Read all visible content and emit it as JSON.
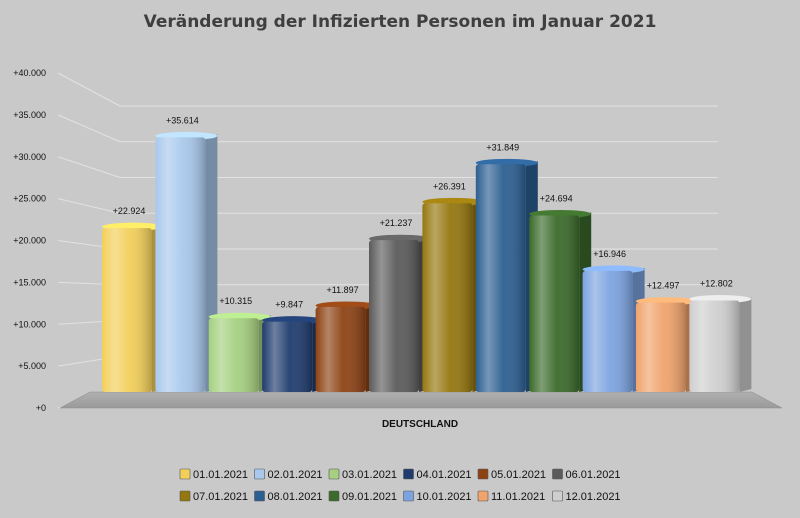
{
  "chart_data": {
    "type": "bar",
    "title": "Veränderung der Infizierten Personen im Januar 2021",
    "xlabel": "DEUTSCHLAND",
    "ylabel": "",
    "ylim": [
      0,
      40000
    ],
    "y_ticks": [
      "+0",
      "+5.000",
      "+10.000",
      "+15.000",
      "+20.000",
      "+25.000",
      "+30.000",
      "+35.000",
      "+40.000"
    ],
    "grid": true,
    "legend_position": "bottom",
    "categories": [
      "DEUTSCHLAND"
    ],
    "series": [
      {
        "name": "01.01.2021",
        "values": [
          22924
        ],
        "label": "+22.924",
        "color": "#f2cf5a"
      },
      {
        "name": "02.01.2021",
        "values": [
          35614
        ],
        "label": "+35.614",
        "color": "#a9c8ec"
      },
      {
        "name": "03.01.2021",
        "values": [
          10315
        ],
        "label": "+10.315",
        "color": "#a5d07f"
      },
      {
        "name": "04.01.2021",
        "values": [
          9847
        ],
        "label": "+9.847",
        "color": "#1f3c6e"
      },
      {
        "name": "05.01.2021",
        "values": [
          11897
        ],
        "label": "+11.897",
        "color": "#8d4214"
      },
      {
        "name": "06.01.2021",
        "values": [
          21237
        ],
        "label": "+21.237",
        "color": "#5b5b5b"
      },
      {
        "name": "07.01.2021",
        "values": [
          26391
        ],
        "label": "+26.391",
        "color": "#95770f"
      },
      {
        "name": "08.01.2021",
        "values": [
          31849
        ],
        "label": "+31.849",
        "color": "#2c5f91"
      },
      {
        "name": "09.01.2021",
        "values": [
          24694
        ],
        "label": "+24.694",
        "color": "#3b6a2b"
      },
      {
        "name": "10.01.2021",
        "values": [
          16946
        ],
        "label": "+16.946",
        "color": "#7ca3e0"
      },
      {
        "name": "11.01.2021",
        "values": [
          12497
        ],
        "label": "+12.497",
        "color": "#f0a36c"
      },
      {
        "name": "12.01.2021",
        "values": [
          12802
        ],
        "label": "+12.802",
        "color": "#cfcfcf"
      }
    ]
  }
}
